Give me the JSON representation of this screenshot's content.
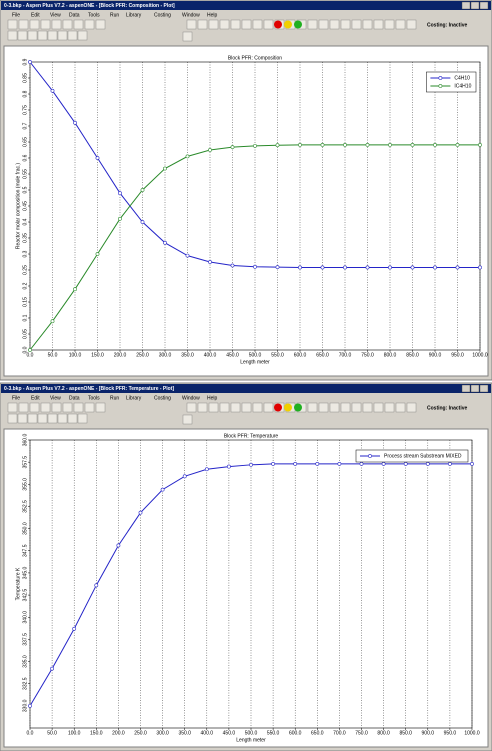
{
  "windows": [
    {
      "title": "0-3.bkp - Aspen Plus V7.2 - aspenONE - [Block PFR: Composition - Plot]",
      "menu": [
        "File",
        "Edit",
        "View",
        "Data",
        "Tools",
        "Run",
        "Library",
        "Costing",
        "Window",
        "Help"
      ],
      "status": "Costing: Inactive"
    },
    {
      "title": "0-3.bkp - Aspen Plus V7.2 - aspenONE - [Block PFR: Temperature - Plot]",
      "menu": [
        "File",
        "Edit",
        "View",
        "Data",
        "Tools",
        "Run",
        "Library",
        "Costing",
        "Window",
        "Help"
      ],
      "status": "Costing: Inactive"
    }
  ],
  "chart_data": [
    {
      "type": "line",
      "title": "Block PFR: Composition",
      "x_label": "Length meter",
      "y_label": "Reactor molar composition (mole frac.)",
      "x": [
        0,
        50,
        100,
        150,
        200,
        250,
        300,
        350,
        400,
        450,
        500,
        550,
        600,
        650,
        700,
        750,
        800,
        850,
        900,
        950,
        1000
      ],
      "series": [
        {
          "name": "C4H10",
          "color": "#2424c8",
          "values": [
            0.9,
            0.81,
            0.71,
            0.6,
            0.49,
            0.4,
            0.335,
            0.295,
            0.275,
            0.264,
            0.26,
            0.259,
            0.258,
            0.258,
            0.258,
            0.258,
            0.258,
            0.258,
            0.258,
            0.258,
            0.258
          ]
        },
        {
          "name": "IC4H10",
          "color": "#2a8a2a",
          "values": [
            0,
            0.09,
            0.19,
            0.3,
            0.41,
            0.5,
            0.567,
            0.605,
            0.625,
            0.634,
            0.638,
            0.64,
            0.641,
            0.641,
            0.641,
            0.641,
            0.641,
            0.641,
            0.641,
            0.641,
            0.641
          ]
        }
      ],
      "xlim": [
        0,
        1000
      ],
      "xticks": [
        {
          "value": 0,
          "label": "0.0"
        },
        {
          "value": 50,
          "label": "50.0"
        },
        {
          "value": 100,
          "label": "100.0"
        },
        {
          "value": 150,
          "label": "150.0"
        },
        {
          "value": 200,
          "label": "200.0"
        },
        {
          "value": 250,
          "label": "250.0"
        },
        {
          "value": 300,
          "label": "300.0"
        },
        {
          "value": 350,
          "label": "350.0"
        },
        {
          "value": 400,
          "label": "400.0"
        },
        {
          "value": 450,
          "label": "450.0"
        },
        {
          "value": 500,
          "label": "500.0"
        },
        {
          "value": 550,
          "label": "550.0"
        },
        {
          "value": 600,
          "label": "600.0"
        },
        {
          "value": 650,
          "label": "650.0"
        },
        {
          "value": 700,
          "label": "700.0"
        },
        {
          "value": 750,
          "label": "750.0"
        },
        {
          "value": 800,
          "label": "800.0"
        },
        {
          "value": 850,
          "label": "850.0"
        },
        {
          "value": 900,
          "label": "900.0"
        },
        {
          "value": 950,
          "label": "950.0"
        },
        {
          "value": 1000,
          "label": "1000.0"
        }
      ],
      "ylim": [
        0,
        0.9
      ],
      "yticks": [
        {
          "value": 0,
          "label": "0.0"
        },
        0.05,
        0.1,
        0.15,
        0.2,
        0.25,
        0.3,
        0.35,
        0.4,
        0.45,
        0.5,
        0.55,
        0.6,
        0.65,
        0.7,
        0.75,
        0.8,
        0.85,
        0.9
      ],
      "xgrid": true,
      "legend": "upper right"
    },
    {
      "type": "line",
      "title": "Block PFR: Temperature",
      "x_label": "Length meter",
      "y_label": "Temperature K",
      "x": [
        0,
        50,
        100,
        150,
        200,
        250,
        300,
        350,
        400,
        450,
        500,
        550,
        600,
        650,
        700,
        750,
        800,
        850,
        900,
        950,
        1000
      ],
      "series": [
        {
          "name": "Process stream Substream MIXED",
          "color": "#2424c8",
          "values": [
            330.0,
            334.2,
            338.7,
            343.6,
            348.1,
            351.8,
            354.4,
            355.9,
            356.7,
            357.0,
            357.2,
            357.3,
            357.3,
            357.3,
            357.3,
            357.3,
            357.3,
            357.3,
            357.3,
            357.3,
            357.3
          ]
        }
      ],
      "xlim": [
        0,
        1000
      ],
      "xticks": [
        {
          "value": 0,
          "label": "0.0"
        },
        {
          "value": 50,
          "label": "50.0"
        },
        {
          "value": 100,
          "label": "100.0"
        },
        {
          "value": 150,
          "label": "150.0"
        },
        {
          "value": 200,
          "label": "200.0"
        },
        {
          "value": 250,
          "label": "250.0"
        },
        {
          "value": 300,
          "label": "300.0"
        },
        {
          "value": 350,
          "label": "350.0"
        },
        {
          "value": 400,
          "label": "400.0"
        },
        {
          "value": 450,
          "label": "450.0"
        },
        {
          "value": 500,
          "label": "500.0"
        },
        {
          "value": 550,
          "label": "550.0"
        },
        {
          "value": 600,
          "label": "600.0"
        },
        {
          "value": 650,
          "label": "650.0"
        },
        {
          "value": 700,
          "label": "700.0"
        },
        {
          "value": 750,
          "label": "750.0"
        },
        {
          "value": 800,
          "label": "800.0"
        },
        {
          "value": 850,
          "label": "850.0"
        },
        {
          "value": 900,
          "label": "900.0"
        },
        {
          "value": 950,
          "label": "950.0"
        },
        {
          "value": 1000,
          "label": "1000.0"
        }
      ],
      "ylim": [
        327.5,
        360
      ],
      "yticks": [
        {
          "value": 330,
          "label": "330.0"
        },
        332.5,
        {
          "value": 335,
          "label": "335.0"
        },
        337.5,
        {
          "value": 340,
          "label": "340.0"
        },
        342.5,
        {
          "value": 345,
          "label": "345.0"
        },
        347.5,
        {
          "value": 350,
          "label": "350.0"
        },
        352.5,
        {
          "value": 355,
          "label": "355.0"
        },
        357.5,
        {
          "value": 360,
          "label": "360.0"
        }
      ],
      "xgrid": true,
      "legend": "upper right"
    }
  ]
}
